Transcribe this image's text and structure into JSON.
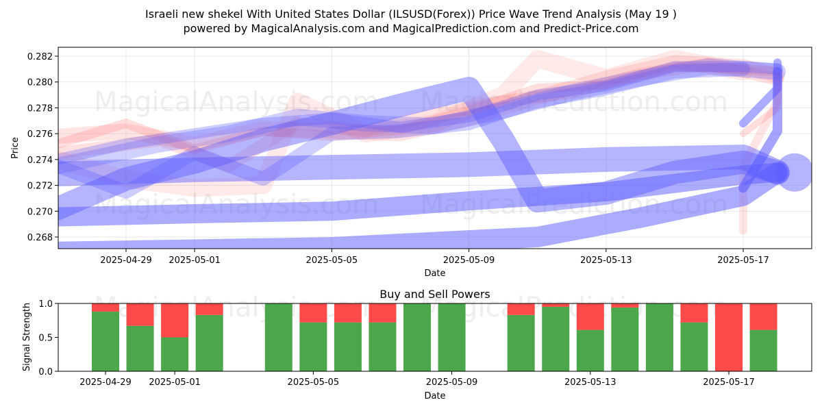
{
  "figure": {
    "title_line1": "Israeli new shekel With United States Dollar (ILSUSD(Forex)) Price Wave Trend Analysis (May 19 )",
    "title_line2": "powered by MagicalAnalysis.com and MagicalPrediction.com and Predict-Price.com",
    "watermark_left": "MagicalAnalysis.com",
    "watermark_right": "MagicalPrediction.com"
  },
  "chart_data": [
    {
      "type": "line",
      "title": "",
      "xlabel": "Date",
      "ylabel": "Price",
      "x_ticks": [
        "2025-04-29",
        "2025-05-01",
        "2025-05-05",
        "2025-05-09",
        "2025-05-13",
        "2025-05-17"
      ],
      "y_ticks": [
        "0.268",
        "0.270",
        "0.272",
        "0.274",
        "0.276",
        "0.278",
        "0.280",
        "0.282"
      ],
      "xlim": [
        "2025-04-26",
        "2025-05-19"
      ],
      "ylim": [
        0.267,
        0.2827
      ],
      "grid": true,
      "colors": {
        "down_waves": "#ff6b6b",
        "up_waves": "#5a5aff"
      },
      "series": [
        {
          "color": "#ff6b6b",
          "values": [
            [
              "2025-04-27",
              0.2752
            ],
            [
              "2025-04-29",
              0.2768
            ],
            [
              "2025-05-01",
              0.2748
            ],
            [
              "2025-05-03",
              0.2762
            ],
            [
              "2025-05-05",
              0.2758
            ],
            [
              "2025-05-07",
              0.2763
            ],
            [
              "2025-05-09",
              0.2778
            ],
            [
              "2025-05-11",
              0.2795
            ],
            [
              "2025-05-13",
              0.2798
            ],
            [
              "2025-05-15",
              0.2812
            ],
            [
              "2025-05-17",
              0.281
            ],
            [
              "2025-05-18",
              0.2808
            ]
          ]
        },
        {
          "color": "#ff6b6b",
          "values": [
            [
              "2025-04-27",
              0.2758
            ],
            [
              "2025-04-29",
              0.2762
            ],
            [
              "2025-05-01",
              0.2752
            ],
            [
              "2025-05-03",
              0.2764
            ],
            [
              "2025-05-05",
              0.2762
            ],
            [
              "2025-05-07",
              0.276
            ],
            [
              "2025-05-09",
              0.2772
            ],
            [
              "2025-05-11",
              0.2788
            ],
            [
              "2025-05-13",
              0.2803
            ],
            [
              "2025-05-15",
              0.2815
            ],
            [
              "2025-05-17",
              0.2812
            ],
            [
              "2025-05-18",
              0.2805
            ]
          ]
        },
        {
          "color": "#ff6b6b",
          "values": [
            [
              "2025-04-27",
              0.2745
            ],
            [
              "2025-04-30",
              0.2755
            ],
            [
              "2025-05-02",
              0.2735
            ],
            [
              "2025-05-04",
              0.2768
            ],
            [
              "2025-05-06",
              0.2762
            ],
            [
              "2025-05-08",
              0.2775
            ],
            [
              "2025-05-10",
              0.2785
            ],
            [
              "2025-05-12",
              0.2792
            ],
            [
              "2025-05-14",
              0.2806
            ],
            [
              "2025-05-16",
              0.2814
            ],
            [
              "2025-05-18",
              0.2802
            ]
          ]
        },
        {
          "color": "#ff6b6b",
          "values": [
            [
              "2025-04-27",
              0.274
            ],
            [
              "2025-04-29",
              0.2725
            ],
            [
              "2025-05-01",
              0.2718
            ],
            [
              "2025-05-03",
              0.272
            ],
            [
              "2025-05-04",
              0.2785
            ],
            [
              "2025-05-06",
              0.276
            ],
            [
              "2025-05-08",
              0.2768
            ],
            [
              "2025-05-10",
              0.279
            ],
            [
              "2025-05-11",
              0.2818
            ],
            [
              "2025-05-13",
              0.2803
            ],
            [
              "2025-05-15",
              0.2818
            ],
            [
              "2025-05-17",
              0.2808
            ]
          ]
        },
        {
          "color": "#ff6b6b",
          "values": [
            [
              "2025-05-17",
              0.2685
            ],
            [
              "2025-05-17",
              0.2735
            ],
            [
              "2025-05-18",
              0.2785
            ],
            [
              "2025-05-18",
              0.2802
            ]
          ]
        },
        {
          "color": "#ff6b6b",
          "values": [
            [
              "2025-05-17",
              0.276
            ],
            [
              "2025-05-18",
              0.278
            ],
            [
              "2025-05-18",
              0.2805
            ]
          ]
        },
        {
          "color": "#5a5aff",
          "values": [
            [
              "2025-04-27",
              0.274
            ],
            [
              "2025-04-29",
              0.2752
            ],
            [
              "2025-05-01",
              0.276
            ],
            [
              "2025-05-03",
              0.2768
            ],
            [
              "2025-05-05",
              0.2772
            ],
            [
              "2025-05-07",
              0.2765
            ],
            [
              "2025-05-09",
              0.2773
            ],
            [
              "2025-05-11",
              0.279
            ],
            [
              "2025-05-13",
              0.2797
            ],
            [
              "2025-05-15",
              0.2812
            ],
            [
              "2025-05-17",
              0.2812
            ],
            [
              "2025-05-18",
              0.281
            ]
          ]
        },
        {
          "color": "#5a5aff",
          "values": [
            [
              "2025-04-27",
              0.2735
            ],
            [
              "2025-04-30",
              0.2752
            ],
            [
              "2025-05-02",
              0.276
            ],
            [
              "2025-05-04",
              0.2773
            ],
            [
              "2025-05-06",
              0.2768
            ],
            [
              "2025-05-08",
              0.2766
            ],
            [
              "2025-05-10",
              0.2778
            ],
            [
              "2025-05-12",
              0.2792
            ],
            [
              "2025-05-14",
              0.2803
            ],
            [
              "2025-05-16",
              0.2812
            ],
            [
              "2025-05-18",
              0.2808
            ]
          ]
        },
        {
          "color": "#5a5aff",
          "values": [
            [
              "2025-04-27",
              0.2735
            ],
            [
              "2025-04-29",
              0.2715
            ],
            [
              "2025-05-01",
              0.2745
            ],
            [
              "2025-05-03",
              0.2725
            ],
            [
              "2025-05-05",
              0.276
            ],
            [
              "2025-05-07",
              0.2762
            ],
            [
              "2025-05-09",
              0.2768
            ],
            [
              "2025-05-11",
              0.2785
            ],
            [
              "2025-05-13",
              0.2795
            ],
            [
              "2025-05-15",
              0.2808
            ],
            [
              "2025-05-17",
              0.281
            ]
          ]
        },
        {
          "color": "#5a5aff",
          "values": [
            [
              "2025-04-27",
              0.2702
            ],
            [
              "2025-04-29",
              0.2725
            ],
            [
              "2025-05-01",
              0.2738
            ],
            [
              "2025-05-03",
              0.2755
            ],
            [
              "2025-05-05",
              0.2768
            ],
            [
              "2025-05-07",
              0.2782
            ],
            [
              "2025-05-09",
              0.2795
            ],
            [
              "2025-05-10",
              0.2755
            ],
            [
              "2025-05-11",
              0.2708
            ],
            [
              "2025-05-13",
              0.2714
            ],
            [
              "2025-05-15",
              0.273
            ],
            [
              "2025-05-17",
              0.2738
            ],
            [
              "2025-05-18",
              0.273
            ]
          ]
        },
        {
          "color": "#5a5aff",
          "values": [
            [
              "2025-04-26",
              0.2728
            ],
            [
              "2025-05-01",
              0.2732
            ],
            [
              "2025-05-05",
              0.2734
            ],
            [
              "2025-05-09",
              0.2736
            ],
            [
              "2025-05-13",
              0.274
            ],
            [
              "2025-05-17",
              0.2742
            ],
            [
              "2025-05-18",
              0.273
            ]
          ]
        },
        {
          "color": "#5a5aff",
          "values": [
            [
              "2025-04-26",
              0.2695
            ],
            [
              "2025-05-01",
              0.2698
            ],
            [
              "2025-05-05",
              0.27
            ],
            [
              "2025-05-09",
              0.2708
            ],
            [
              "2025-05-13",
              0.2715
            ],
            [
              "2025-05-17",
              0.2728
            ],
            [
              "2025-05-18",
              0.273
            ]
          ]
        },
        {
          "color": "#5a5aff",
          "values": [
            [
              "2025-04-26",
              0.2668
            ],
            [
              "2025-05-05",
              0.2672
            ],
            [
              "2025-05-11",
              0.268
            ],
            [
              "2025-05-14",
              0.2695
            ],
            [
              "2025-05-17",
              0.2712
            ],
            [
              "2025-05-18",
              0.273
            ]
          ]
        },
        {
          "color": "#5a5aff",
          "values": [
            [
              "2025-05-17",
              0.2768
            ],
            [
              "2025-05-18",
              0.2795
            ],
            [
              "2025-05-18",
              0.2815
            ]
          ]
        },
        {
          "color": "#5a5aff",
          "values": [
            [
              "2025-05-17",
              0.2718
            ],
            [
              "2025-05-18",
              0.2762
            ],
            [
              "2025-05-18",
              0.2808
            ]
          ]
        }
      ]
    },
    {
      "type": "bar",
      "title": "Buy and Sell Powers",
      "xlabel": "Date",
      "ylabel": "Signal Strength",
      "x_ticks": [
        "2025-04-29",
        "2025-05-01",
        "2025-05-05",
        "2025-05-09",
        "2025-05-13",
        "2025-05-17"
      ],
      "y_ticks": [
        "0.0",
        "0.5",
        "1.0"
      ],
      "ylim": [
        0,
        1
      ],
      "colors": {
        "buy": "#4ca64c",
        "sell": "#ff4a4a"
      },
      "categories": [
        "2025-04-29",
        "2025-04-30",
        "2025-05-01",
        "2025-05-02",
        "2025-05-04",
        "2025-05-05",
        "2025-05-06",
        "2025-05-07",
        "2025-05-08",
        "2025-05-09",
        "2025-05-11",
        "2025-05-12",
        "2025-05-13",
        "2025-05-14",
        "2025-05-15",
        "2025-05-16",
        "2025-05-17",
        "2025-05-18"
      ],
      "series": [
        {
          "values": [
            0.88,
            0.67,
            0.5,
            0.83,
            1.0,
            0.72,
            0.72,
            0.72,
            1.0,
            1.0,
            0.83,
            0.95,
            0.61,
            0.94,
            1.0,
            0.72,
            0.0,
            0.61
          ]
        },
        {
          "values": [
            0.12,
            0.33,
            0.5,
            0.17,
            0.0,
            0.28,
            0.28,
            0.28,
            0.0,
            0.0,
            0.17,
            0.05,
            0.39,
            0.06,
            0.0,
            0.28,
            1.0,
            0.39
          ]
        }
      ]
    }
  ]
}
